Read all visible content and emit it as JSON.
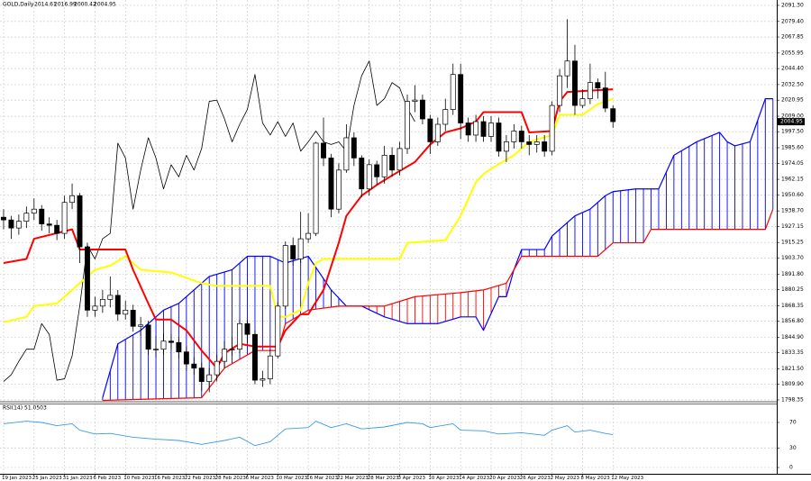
{
  "chart_data": [
    {
      "type": "candlestick",
      "title": "GOLD,Daily",
      "open": [
        1934,
        1932,
        1926,
        1931,
        1937,
        1940,
        1929,
        1928,
        1922,
        1945,
        1950,
        1912,
        1865,
        1868,
        1873,
        1876,
        1862,
        1865,
        1853,
        1854,
        1836,
        1836,
        1842,
        1841,
        1834,
        1825,
        1822,
        1812,
        1817,
        1827,
        1836,
        1836,
        1855,
        1847,
        1813,
        1814,
        1831,
        1868,
        1913,
        1903,
        1918,
        1922,
        1989,
        1978,
        1940,
        1969,
        1993,
        1978,
        1955,
        1973,
        1964,
        1980,
        1969,
        1985,
        2020,
        2021,
        2007,
        1990,
        2003,
        2014,
        2040,
        2004,
        1995,
        2005,
        1994,
        2004,
        1983,
        1990,
        1998,
        1990,
        1988,
        1990,
        1983,
        2017,
        2039,
        2050,
        2017,
        2022,
        2034,
        2030,
        2014.61
      ],
      "high": [
        1940,
        1935,
        1936,
        1942,
        1948,
        1943,
        1934,
        1932,
        1950,
        1959,
        1952,
        1915,
        1875,
        1880,
        1890,
        1880,
        1872,
        1869,
        1860,
        1857,
        1846,
        1848,
        1847,
        1845,
        1838,
        1830,
        1826,
        1822,
        1832,
        1842,
        1845,
        1858,
        1858,
        1850,
        1820,
        1836,
        1871,
        1916,
        1919,
        1938,
        1937,
        1990,
        2008,
        1981,
        1974,
        2003,
        1997,
        1980,
        1977,
        1976,
        1987,
        1986,
        1990,
        2025,
        2032,
        2025,
        2010,
        2008,
        2022,
        2048,
        2048,
        2008,
        2010,
        2009,
        2009,
        2008,
        1995,
        2003,
        2002,
        1995,
        1995,
        1995,
        2020,
        2044,
        2081,
        2062,
        2029,
        2048,
        2037,
        2042,
        2016.99
      ],
      "low": [
        1925,
        1918,
        1921,
        1926,
        1932,
        1924,
        1922,
        1917,
        1918,
        1940,
        1900,
        1860,
        1860,
        1863,
        1867,
        1857,
        1858,
        1849,
        1846,
        1832,
        1830,
        1832,
        1836,
        1829,
        1820,
        1817,
        1805,
        1804,
        1812,
        1822,
        1831,
        1833,
        1841,
        1810,
        1808,
        1810,
        1829,
        1866,
        1898,
        1900,
        1915,
        1920,
        1972,
        1934,
        1937,
        1967,
        1972,
        1949,
        1950,
        1958,
        1959,
        1964,
        1965,
        1981,
        2012,
        2003,
        1981,
        1987,
        1998,
        2010,
        1992,
        1990,
        1990,
        1990,
        1990,
        1979,
        1975,
        1985,
        1985,
        1980,
        1982,
        1979,
        1980,
        2012,
        2030,
        2010,
        2015,
        2018,
        2022,
        2012,
        2000.42
      ],
      "close": [
        1932,
        1926,
        1931,
        1937,
        1940,
        1929,
        1928,
        1922,
        1945,
        1950,
        1912,
        1865,
        1868,
        1873,
        1876,
        1862,
        1865,
        1853,
        1854,
        1836,
        1836,
        1842,
        1841,
        1834,
        1825,
        1822,
        1812,
        1817,
        1827,
        1836,
        1836,
        1855,
        1847,
        1813,
        1814,
        1831,
        1868,
        1913,
        1903,
        1918,
        1922,
        1989,
        1978,
        1940,
        1969,
        1993,
        1978,
        1955,
        1973,
        1964,
        1980,
        1969,
        1985,
        2020,
        2021,
        2007,
        1990,
        2003,
        2014,
        2040,
        2004,
        1995,
        2005,
        1994,
        2004,
        1983,
        1990,
        1998,
        1990,
        1988,
        1990,
        1983,
        2017,
        2039,
        2050,
        2017,
        2022,
        2034,
        2030,
        2015,
        2004.95
      ],
      "up_color": "#ffffff",
      "down_color": "#000000",
      "lines": [
        {
          "color": "#000000",
          "x": [
            0,
            1,
            2,
            3,
            4,
            5,
            6,
            7,
            8,
            9,
            10,
            11,
            12,
            13,
            14,
            15,
            16,
            17,
            18,
            19,
            20,
            21,
            22,
            23,
            24,
            25,
            26,
            27,
            28,
            29,
            30,
            31,
            32,
            33,
            34,
            35,
            36,
            37,
            38,
            39,
            40,
            41,
            42,
            43,
            44,
            45,
            46,
            47,
            48,
            49,
            50,
            51,
            52,
            53,
            54
          ],
          "values": [
            1812,
            1817,
            1827,
            1836,
            1836,
            1855,
            1847,
            1813,
            1814,
            1831,
            1868,
            1913,
            1903,
            1918,
            1922,
            1989,
            1978,
            1940,
            1969,
            1993,
            1978,
            1955,
            1973,
            1964,
            1980,
            1969,
            1985,
            2020,
            2021,
            2007,
            1990,
            2003,
            2014,
            2040,
            2004,
            1995,
            2005,
            1994,
            2004,
            1983,
            1990,
            1998,
            1990,
            1988,
            1990,
            1983,
            2017,
            2039,
            2050,
            2017,
            2022,
            2034,
            2030,
            2015,
            2004.95
          ]
        },
        {
          "color": "#ffff00",
          "x": [
            0,
            3,
            4,
            7,
            9,
            12,
            14,
            16,
            17,
            18,
            22,
            26,
            28,
            35,
            36,
            37,
            39,
            40,
            41,
            42,
            52,
            53,
            58,
            60,
            62,
            63,
            64,
            67,
            68,
            69,
            72,
            73,
            76,
            78,
            80
          ],
          "values": [
            1856,
            1860,
            1868,
            1870,
            1880,
            1895,
            1898,
            1905,
            1900,
            1895,
            1893,
            1885,
            1883,
            1883,
            1860,
            1860,
            1865,
            1885,
            1900,
            1903,
            1903,
            1915,
            1917,
            1935,
            1960,
            1966,
            1970,
            1980,
            1985,
            1990,
            1995,
            2010,
            2010,
            2018,
            2022
          ]
        },
        {
          "color": "#ff0000",
          "x": [
            0,
            3,
            4,
            9,
            10,
            16,
            17,
            19,
            20,
            22,
            24,
            26,
            28,
            29,
            31,
            33,
            36,
            37,
            39,
            40,
            42,
            44,
            45,
            47,
            49,
            51,
            54,
            56,
            58,
            60,
            62,
            63,
            68,
            69,
            72,
            73,
            74,
            80
          ],
          "values": [
            1900,
            1903,
            1918,
            1925,
            1910,
            1910,
            1895,
            1870,
            1858,
            1858,
            1850,
            1835,
            1822,
            1833,
            1840,
            1838,
            1838,
            1850,
            1862,
            1862,
            1880,
            1915,
            1935,
            1950,
            1958,
            1965,
            1975,
            1988,
            1997,
            2000,
            2005,
            2012,
            2012,
            1997,
            1998,
            2020,
            2027,
            2029
          ]
        }
      ],
      "cloud": {
        "up_color": "#0000ff",
        "down_color": "#ff0000",
        "senkou_a": {
          "x": [
            13,
            15,
            18,
            21,
            23,
            27,
            30,
            32,
            35,
            37,
            40,
            43,
            45,
            47,
            50,
            53,
            57,
            60,
            62,
            63,
            65,
            66,
            67,
            68,
            71,
            72,
            73,
            75,
            77,
            79,
            80,
            83,
            86,
            88,
            91,
            94,
            95,
            96,
            98,
            100,
            101
          ],
          "values": [
            1800,
            1840,
            1850,
            1865,
            1870,
            1890,
            1895,
            1905,
            1905,
            1900,
            1905,
            1880,
            1868,
            1868,
            1860,
            1855,
            1855,
            1860,
            1860,
            1850,
            1875,
            1875,
            1895,
            1910,
            1910,
            1920,
            1925,
            1935,
            1940,
            1950,
            1953,
            1955,
            1955,
            1980,
            1990,
            1997,
            1990,
            1987,
            1990,
            2022,
            2022
          ]
        },
        "senkou_b": {
          "x": [
            13,
            26,
            29,
            33,
            36,
            37,
            40,
            44,
            50,
            54,
            60,
            63,
            66,
            67,
            68,
            78,
            80,
            84,
            85,
            100,
            101
          ],
          "values": [
            1798,
            1800,
            1822,
            1835,
            1835,
            1855,
            1865,
            1868,
            1868,
            1875,
            1878,
            1880,
            1885,
            1895,
            1905,
            1905,
            1915,
            1915,
            1925,
            1925,
            1940
          ]
        }
      },
      "xlim": [
        -0.47,
        101.5
      ],
      "ylim": [
        1797,
        2095.3
      ],
      "xticks": [
        {
          "value": 0,
          "label": "19 Jan 2023"
        },
        {
          "value": 4,
          "label": "25 Jan 2023"
        },
        {
          "value": 8,
          "label": "31 Jan 2023"
        },
        {
          "value": 12,
          "label": "6 Feb 2023"
        },
        {
          "value": 16,
          "label": "10 Feb 2023"
        },
        {
          "value": 20,
          "label": "16 Feb 2023"
        },
        {
          "value": 24,
          "label": "22 Feb 2023"
        },
        {
          "value": 28,
          "label": "28 Feb 2023"
        },
        {
          "value": 32,
          "label": "6 Mar 2023"
        },
        {
          "value": 36,
          "label": "10 Mar 2023"
        },
        {
          "value": 40,
          "label": "16 Mar 2023"
        },
        {
          "value": 44,
          "label": "22 Mar 2023"
        },
        {
          "value": 48,
          "label": "28 Mar 2023"
        },
        {
          "value": 52,
          "label": "3 Apr 2023"
        },
        {
          "value": 56,
          "label": "10 Apr 2023"
        },
        {
          "value": 60,
          "label": "14 Apr 2023"
        },
        {
          "value": 64,
          "label": "20 Apr 2023"
        },
        {
          "value": 68,
          "label": "26 Apr 2023"
        },
        {
          "value": 72,
          "label": "2 May 2023"
        },
        {
          "value": 76,
          "label": "8 May 2023"
        },
        {
          "value": 80,
          "label": "12 May 2023"
        }
      ],
      "yticks": [
        {
          "value": 2091.3,
          "label": "2091.30"
        },
        {
          "value": 2079.4,
          "label": "2079.40"
        },
        2067.85,
        2055.95,
        {
          "value": 2044.4,
          "label": "2044.40"
        },
        {
          "value": 2032.5,
          "label": "2032.50"
        },
        2020.95,
        {
          "value": 2009,
          "label": "2009.00"
        },
        {
          "value": 1997.5,
          "label": "1997.50"
        },
        {
          "value": 1985.6,
          "label": "1985.60"
        },
        1974.05,
        1962.15,
        {
          "value": 1950.6,
          "label": "1950.60"
        },
        {
          "value": 1938.7,
          "label": "1938.70"
        },
        1927.15,
        1915.25,
        {
          "value": 1903.7,
          "label": "1903.70"
        },
        {
          "value": 1891.8,
          "label": "1891.80"
        },
        1880.25,
        1868.35,
        {
          "value": 1856.8,
          "label": "1856.80"
        },
        {
          "value": 1844.9,
          "label": "1844.90"
        },
        1833.35,
        {
          "value": 1821.5,
          "label": "1821.50"
        },
        {
          "value": 1809.9,
          "label": "1809.90"
        },
        1798.35
      ],
      "grid": true
    },
    {
      "type": "line",
      "title": "RSI(14)",
      "color": "#3c9be6",
      "x": [
        0,
        3,
        5,
        7,
        9,
        10,
        12,
        14,
        17,
        20,
        23,
        26,
        29,
        31,
        33,
        35,
        37,
        40,
        41,
        43,
        45,
        47,
        50,
        53,
        55,
        56,
        59,
        60,
        63,
        65,
        68,
        71,
        72,
        74,
        75,
        77,
        79,
        80
      ],
      "values": [
        68,
        72,
        70,
        65,
        68,
        58,
        52,
        53,
        47,
        44,
        42,
        36,
        42,
        47,
        34,
        40,
        60,
        62,
        72,
        62,
        68,
        60,
        63,
        70,
        68,
        62,
        68,
        58,
        57,
        52,
        54,
        50,
        58,
        65,
        55,
        58,
        53,
        51.0503
      ],
      "ylim": [
        -9.8,
        99.4
      ],
      "yticks": [
        70,
        30,
        0
      ],
      "grid": true
    }
  ]
}
